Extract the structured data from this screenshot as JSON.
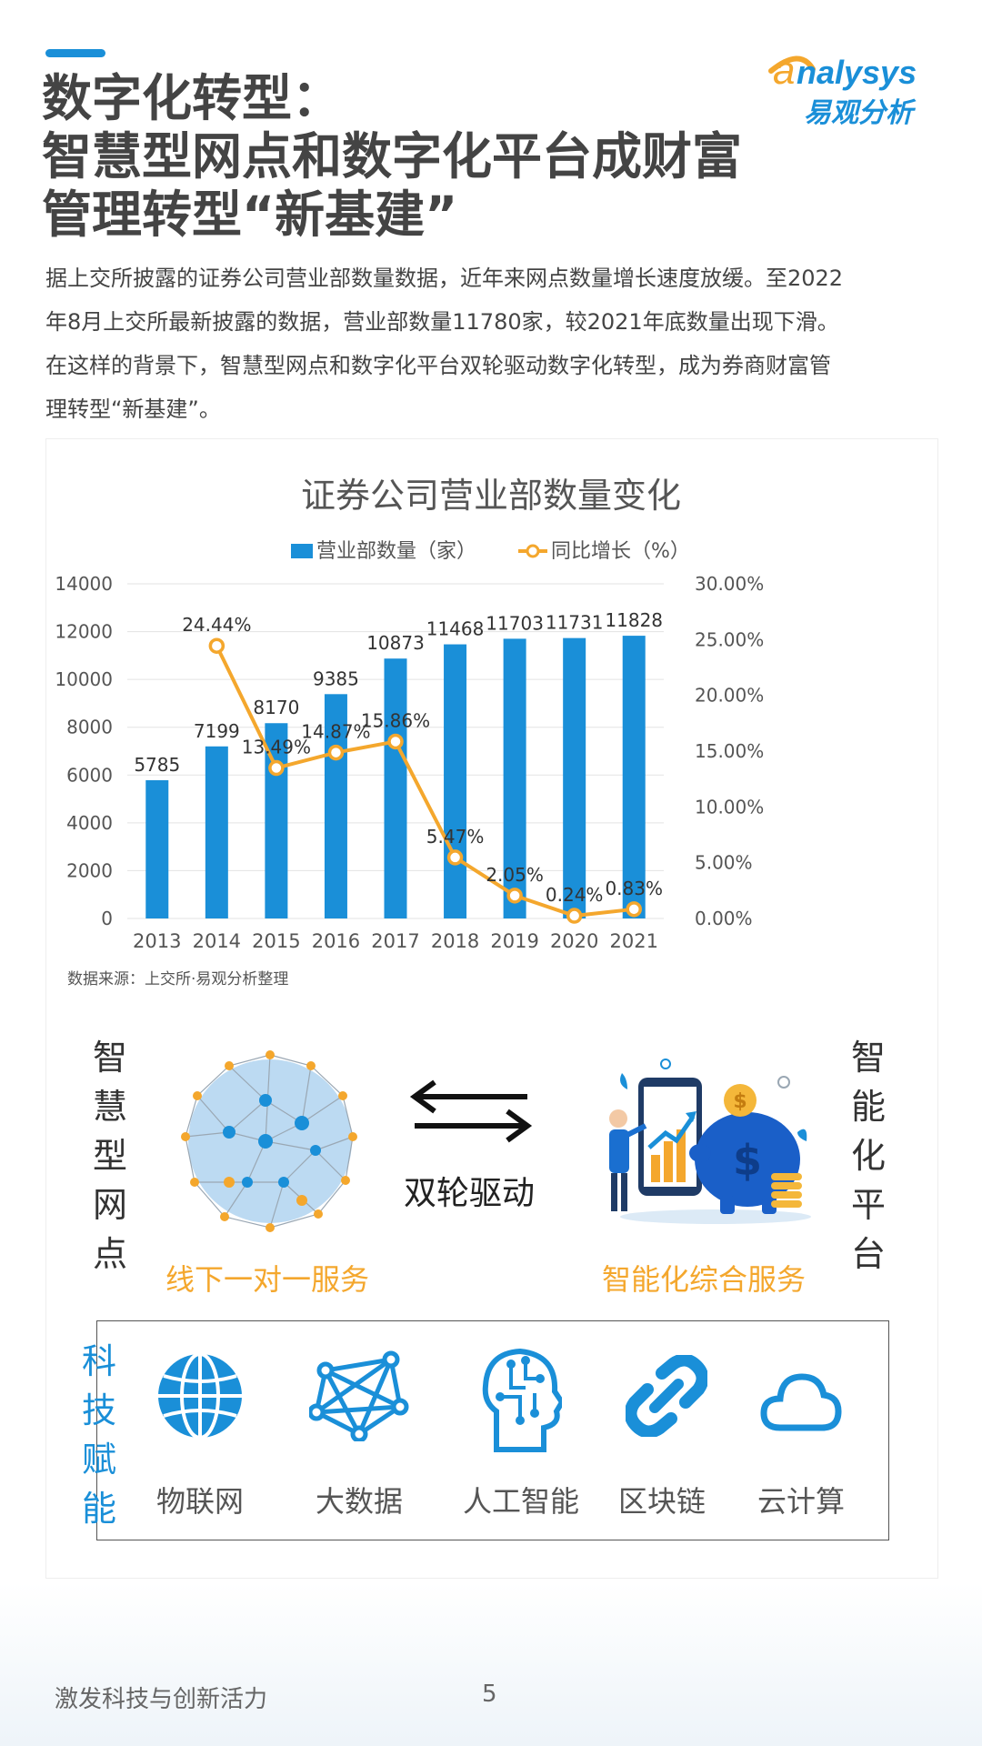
{
  "header": {
    "title_lines": [
      "数字化转型：",
      "智慧型网点和数字化平台成财富",
      "管理转型“新基建”"
    ],
    "logo": {
      "wordmark": "nalysys",
      "sub": "易观分析"
    }
  },
  "intro_lines": [
    "据上交所披露的证券公司营业部数量数据，近年来网点数量增长速度放缓。至2022",
    "年8月上交所最新披露的数据，营业部数量11780家，较2021年底数量出现下滑。",
    "在这样的背景下，智慧型网点和数字化平台双轮驱动数字化转型，成为券商财富管",
    "理转型“新基建”。"
  ],
  "chart_data": {
    "type": "bar",
    "title": "证券公司营业部数量变化",
    "categories": [
      "2013",
      "2014",
      "2015",
      "2016",
      "2017",
      "2018",
      "2019",
      "2020",
      "2021"
    ],
    "series": [
      {
        "name": "营业部数量（家）",
        "type": "bar",
        "axis": "left",
        "color": "#1a8fd8",
        "values": [
          5785,
          7199,
          8170,
          9385,
          10873,
          11468,
          11703,
          11731,
          11828
        ],
        "labels": [
          "5785",
          "7199",
          "8170",
          "9385",
          "10873",
          "11468",
          "11703",
          "11731",
          "11828"
        ]
      },
      {
        "name": "同比增长（%）",
        "type": "line",
        "axis": "right",
        "color": "#f4a72d",
        "values": [
          null,
          24.44,
          13.49,
          14.87,
          15.86,
          5.47,
          2.05,
          0.24,
          0.83
        ],
        "labels": [
          "",
          "24.44%",
          "13.49%",
          "14.87%",
          "15.86%",
          "5.47%",
          "2.05%",
          "0.24%",
          "0.83%"
        ]
      }
    ],
    "y_left": {
      "min": 0,
      "max": 14000,
      "ticks": [
        "0",
        "2000",
        "4000",
        "6000",
        "8000",
        "10000",
        "12000",
        "14000"
      ]
    },
    "y_right": {
      "min": 0,
      "max": 30,
      "ticks": [
        "0.00%",
        "5.00%",
        "10.00%",
        "15.00%",
        "20.00%",
        "25.00%",
        "30.00%"
      ]
    },
    "grid": true,
    "legend": "top-center"
  },
  "source": "数据来源：上交所·易观分析整理",
  "diagram": {
    "left_vertical": [
      "智",
      "慧",
      "型",
      "网",
      "点"
    ],
    "right_vertical": [
      "智",
      "能",
      "化",
      "平",
      "台"
    ],
    "center_label": "双轮驱动",
    "left_service": "线下一对一服务",
    "right_service": "智能化综合服务"
  },
  "tech": {
    "title_chars": [
      "科",
      "技",
      "赋",
      "能"
    ],
    "items": [
      {
        "label": "物联网",
        "icon": "globe-icon"
      },
      {
        "label": "大数据",
        "icon": "network-icon"
      },
      {
        "label": "人工智能",
        "icon": "ai-head-icon"
      },
      {
        "label": "区块链",
        "icon": "chain-link-icon"
      },
      {
        "label": "云计算",
        "icon": "cloud-icon"
      }
    ]
  },
  "footer": {
    "left": "激发科技与创新活力",
    "page": "5"
  },
  "colors": {
    "accent": "#1a8fd8",
    "orange": "#f4a72d"
  }
}
